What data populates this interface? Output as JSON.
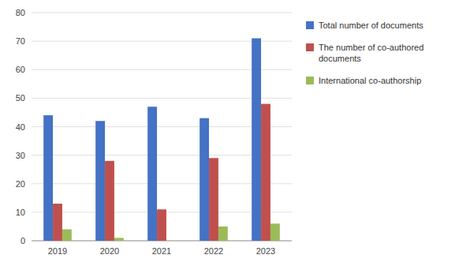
{
  "chart_data": {
    "type": "bar",
    "categories": [
      "2019",
      "2020",
      "2021",
      "2022",
      "2023"
    ],
    "series": [
      {
        "name": "Total number of documents",
        "color": "#4472C4",
        "values": [
          44,
          42,
          47,
          43,
          71
        ]
      },
      {
        "name": "The number of co-authored\ndocuments",
        "color": "#C0504D",
        "values": [
          13,
          28,
          11,
          29,
          48
        ]
      },
      {
        "name": "International co-authorship",
        "color": "#9BBB59",
        "values": [
          4,
          1,
          0,
          5,
          6
        ]
      }
    ],
    "ylim": [
      0,
      80
    ],
    "yticks": [
      0,
      10,
      20,
      30,
      40,
      50,
      60,
      70,
      80
    ],
    "grid": true,
    "legend": "right"
  }
}
